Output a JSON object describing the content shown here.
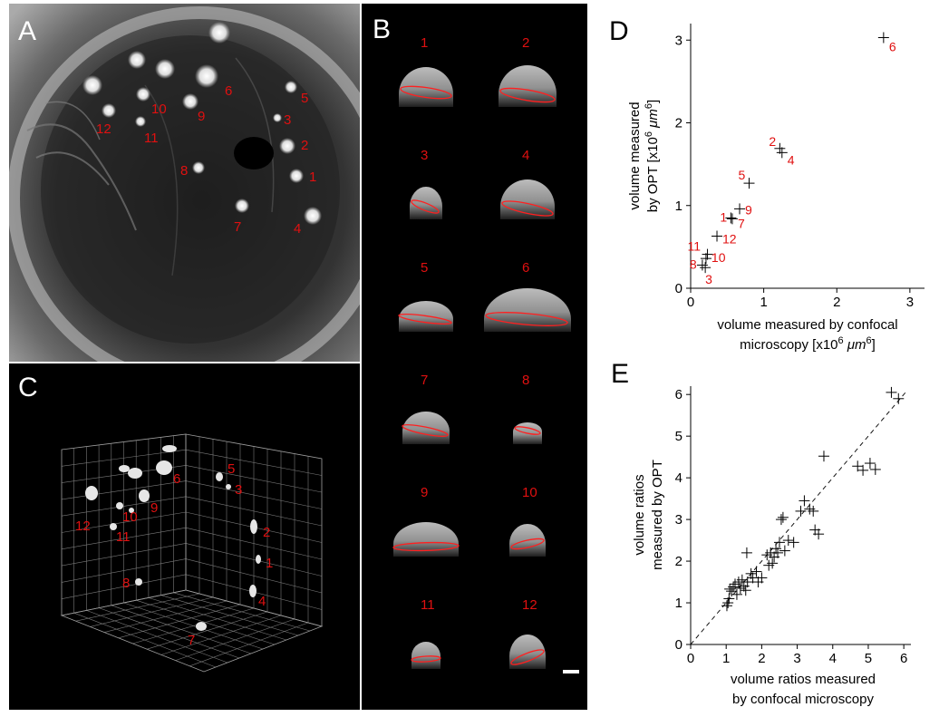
{
  "panels": {
    "A": {
      "label": "A",
      "numbers": [
        "1",
        "2",
        "3",
        "4",
        "5",
        "6",
        "7",
        "8",
        "9",
        "10",
        "11",
        "12"
      ]
    },
    "B": {
      "label": "B",
      "titles": [
        "1",
        "2",
        "3",
        "4",
        "5",
        "6",
        "7",
        "8",
        "9",
        "10",
        "11",
        "12"
      ]
    },
    "C": {
      "label": "C",
      "numbers": [
        "1",
        "2",
        "3",
        "4",
        "5",
        "6",
        "7",
        "8",
        "9",
        "10",
        "11",
        "12"
      ]
    },
    "D": {
      "label": "D"
    },
    "E": {
      "label": "E"
    }
  },
  "chart_data": [
    {
      "id": "D",
      "type": "scatter",
      "xlabel": [
        "volume measured by confocal",
        "microscopy [x10",
        "6",
        " μm",
        "6",
        "]"
      ],
      "ylabel": [
        "volume measured",
        "by OPT [x10",
        "6",
        " μm",
        "6",
        "]"
      ],
      "xlim": [
        0,
        3.2
      ],
      "ylim": [
        0,
        3.2
      ],
      "xticks": [
        0,
        1,
        2,
        3
      ],
      "yticks": [
        0,
        1,
        2,
        3
      ],
      "points": [
        {
          "x": 2.64,
          "y": 3.03,
          "label": "6"
        },
        {
          "x": 1.22,
          "y": 1.69,
          "label": "2"
        },
        {
          "x": 1.25,
          "y": 1.64,
          "label": "4"
        },
        {
          "x": 0.8,
          "y": 1.27,
          "label": "5"
        },
        {
          "x": 0.67,
          "y": 0.96,
          "label": "9"
        },
        {
          "x": 0.55,
          "y": 0.85,
          "label": "1"
        },
        {
          "x": 0.57,
          "y": 0.84,
          "label": "7"
        },
        {
          "x": 0.36,
          "y": 0.63,
          "label": "12"
        },
        {
          "x": 0.23,
          "y": 0.41,
          "label": "11"
        },
        {
          "x": 0.21,
          "y": 0.36,
          "label": "10"
        },
        {
          "x": 0.16,
          "y": 0.28,
          "label": "8"
        },
        {
          "x": 0.2,
          "y": 0.25,
          "label": "3"
        }
      ]
    },
    {
      "id": "E",
      "type": "scatter",
      "xlabel": [
        "volume ratios measured",
        "by confocal microscopy"
      ],
      "ylabel": [
        "volume ratios",
        "measured by OPT"
      ],
      "xlim": [
        0,
        6.2
      ],
      "ylim": [
        0,
        6.2
      ],
      "xticks": [
        0,
        1,
        2,
        3,
        4,
        5,
        6
      ],
      "yticks": [
        0,
        1,
        2,
        3,
        4,
        5,
        6
      ],
      "diagonal": true,
      "points": [
        [
          1.02,
          0.93
        ],
        [
          1.05,
          1.0
        ],
        [
          1.08,
          1.1
        ],
        [
          1.1,
          1.33
        ],
        [
          1.15,
          1.28
        ],
        [
          1.2,
          1.38
        ],
        [
          1.25,
          1.45
        ],
        [
          1.3,
          1.2
        ],
        [
          1.35,
          1.5
        ],
        [
          1.4,
          1.35
        ],
        [
          1.45,
          1.55
        ],
        [
          1.5,
          1.4
        ],
        [
          1.55,
          1.3
        ],
        [
          1.6,
          1.5
        ],
        [
          1.58,
          2.2
        ],
        [
          1.7,
          1.7
        ],
        [
          1.75,
          1.6
        ],
        [
          1.85,
          1.75
        ],
        [
          1.9,
          1.5
        ],
        [
          2.0,
          1.6
        ],
        [
          2.15,
          2.15
        ],
        [
          2.2,
          1.9
        ],
        [
          2.25,
          2.2
        ],
        [
          2.3,
          1.95
        ],
        [
          2.35,
          2.1
        ],
        [
          2.4,
          2.3
        ],
        [
          2.45,
          2.2
        ],
        [
          2.55,
          3.0
        ],
        [
          2.6,
          3.05
        ],
        [
          2.5,
          2.45
        ],
        [
          2.65,
          2.25
        ],
        [
          2.75,
          2.5
        ],
        [
          2.9,
          2.45
        ],
        [
          3.1,
          3.2
        ],
        [
          3.2,
          3.45
        ],
        [
          3.35,
          3.25
        ],
        [
          3.45,
          3.2
        ],
        [
          3.5,
          2.75
        ],
        [
          3.6,
          2.65
        ],
        [
          3.75,
          4.52
        ],
        [
          4.7,
          4.28
        ],
        [
          4.85,
          4.18
        ],
        [
          5.05,
          4.35
        ],
        [
          5.2,
          4.2
        ],
        [
          5.65,
          6.05
        ],
        [
          5.85,
          5.9
        ]
      ]
    }
  ]
}
